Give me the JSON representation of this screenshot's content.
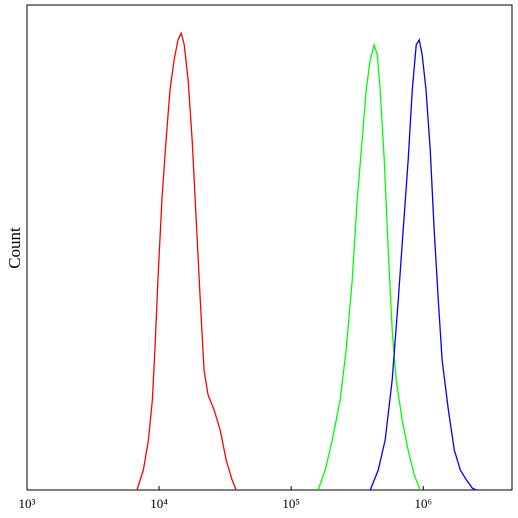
{
  "chart_data": {
    "type": "line",
    "y_label": "Count",
    "xscale": "log",
    "xlim": [
      1000,
      4700000
    ],
    "ylim": [
      0,
      100
    ],
    "xticks": [
      {
        "value": 1000,
        "label": "10³"
      },
      {
        "value": 10000,
        "label": "10⁴"
      },
      {
        "value": 100000,
        "label": "10⁵"
      },
      {
        "value": 1000000,
        "label": "10⁶"
      }
    ],
    "series": [
      {
        "color": "#ff0000",
        "x": [
          6800,
          7600,
          8300,
          8900,
          9300,
          9800,
          10500,
          11300,
          12100,
          13000,
          13900,
          14700,
          15500,
          16600,
          17800,
          19100,
          20500,
          21900,
          23500,
          26100,
          29000,
          32200,
          35700,
          38300
        ],
        "values": [
          0,
          4.1,
          10.3,
          18.6,
          28.9,
          43.3,
          59.8,
          72.2,
          82.5,
          88.7,
          92.8,
          94.2,
          91.8,
          84.5,
          72.2,
          55.7,
          39.2,
          24.7,
          19.6,
          16.5,
          12.4,
          6.2,
          2.1,
          0
        ]
      },
      {
        "color": "#00ff00",
        "x": [
          160000,
          181000,
          205000,
          235000,
          261000,
          290000,
          316000,
          345000,
          370000,
          397000,
          425000,
          449000,
          472000,
          507000,
          543000,
          582000,
          624000,
          693000,
          769000,
          855000,
          948000
        ],
        "values": [
          0,
          4.1,
          10.3,
          18.6,
          28.9,
          43.3,
          59.8,
          72.2,
          82.5,
          88.7,
          91.8,
          89.7,
          82.5,
          68.0,
          49.5,
          33.0,
          22.7,
          14.4,
          8.2,
          3.1,
          0
        ]
      },
      {
        "color": "#0000ff",
        "x": [
          397000,
          456000,
          515000,
          582000,
          647000,
          705000,
          769000,
          826000,
          885000,
          933000,
          982000,
          1050000,
          1130000,
          1210000,
          1300000,
          1390000,
          1550000,
          1720000,
          1910000,
          2120000,
          2350000,
          2520000
        ],
        "values": [
          0,
          4.1,
          10.3,
          22.7,
          39.2,
          53.6,
          68.0,
          82.5,
          91.8,
          92.8,
          89.7,
          82.5,
          70.1,
          53.6,
          39.2,
          26.8,
          16.5,
          8.2,
          4.1,
          2.1,
          0.4,
          0
        ]
      }
    ]
  }
}
